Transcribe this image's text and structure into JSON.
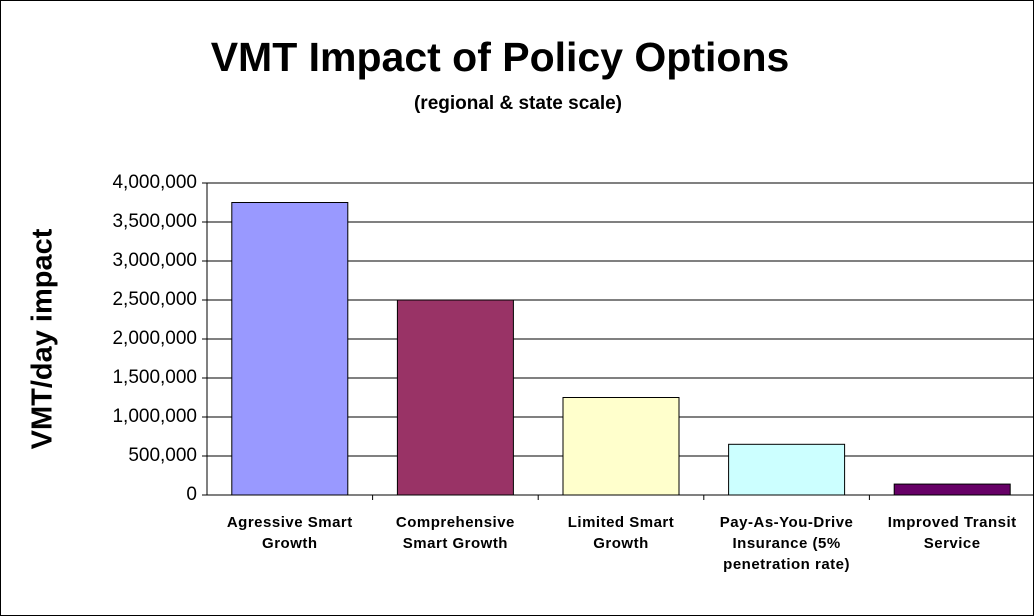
{
  "chart_data": {
    "type": "bar",
    "title": "VMT Impact of Policy Options",
    "subtitle": "(regional & state scale)",
    "ylabel": "VMT/day impact",
    "categories": [
      "Agressive Smart Growth",
      "Comprehensive Smart Growth",
      "Limited Smart Growth",
      "Pay-As-You-Drive Insurance (5% penetration rate)",
      "Improved Transit Service"
    ],
    "values": [
      3750000,
      2500000,
      1250000,
      650000,
      140000
    ],
    "colors": [
      "#9999ff",
      "#993366",
      "#ffffcc",
      "#ccffff",
      "#660066"
    ],
    "ylim": [
      0,
      4000000
    ],
    "yticks": [
      0,
      {
        "value": 500000,
        "label": "500,000"
      },
      {
        "value": 1000000,
        "label": "1,000,000"
      },
      {
        "value": 1500000,
        "label": "1,500,000"
      },
      {
        "value": 2000000,
        "label": "2,000,000"
      },
      {
        "value": 2500000,
        "label": "2,500,000"
      },
      {
        "value": 3000000,
        "label": "3,000,000"
      },
      {
        "value": 3500000,
        "label": "3,500,000"
      },
      {
        "value": 4000000,
        "label": "4,000,000"
      }
    ],
    "grid": true
  }
}
